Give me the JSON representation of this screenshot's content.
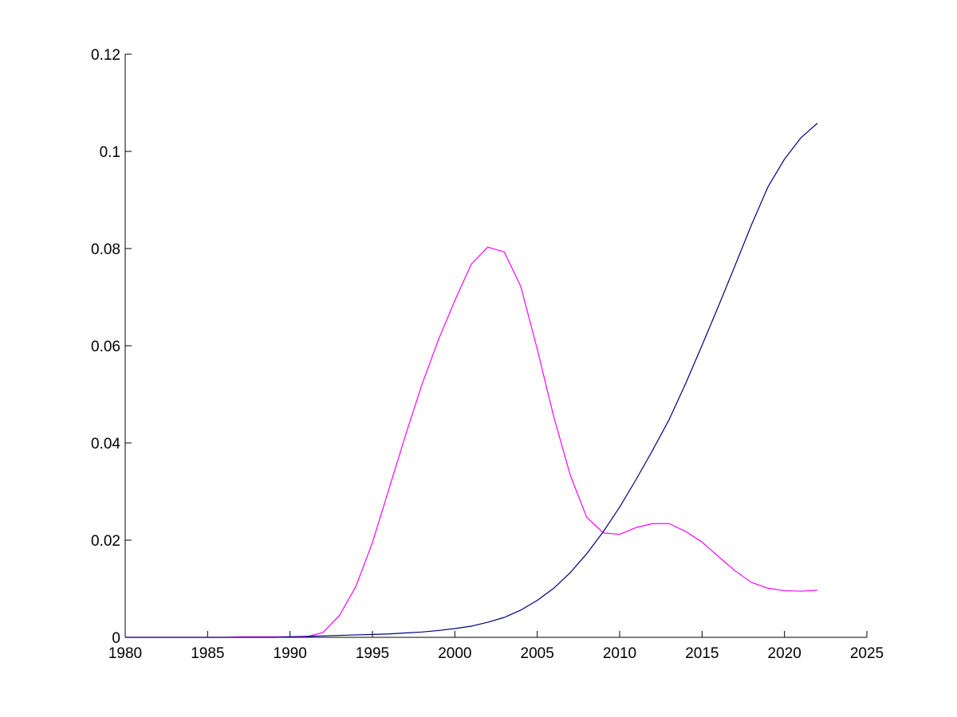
{
  "chart_data": {
    "type": "line",
    "title": "",
    "xlabel": "",
    "ylabel": "",
    "xlim": [
      1980,
      2025
    ],
    "ylim": [
      0,
      0.12
    ],
    "x_ticks": [
      1980,
      1985,
      1990,
      1995,
      2000,
      2005,
      2010,
      2015,
      2020,
      2025
    ],
    "y_ticks": [
      0,
      0.02,
      0.04,
      0.06,
      0.08,
      0.1,
      0.12
    ],
    "x_tick_labels": [
      "1980",
      "1985",
      "1990",
      "1995",
      "2000",
      "2005",
      "2010",
      "2015",
      "2020",
      "2025"
    ],
    "y_tick_labels": [
      "0",
      "0.02",
      "0.04",
      "0.06",
      "0.08",
      "0.1",
      "0.12"
    ],
    "grid": false,
    "legend": "none",
    "series": [
      {
        "color": "#ff00ff",
        "x": [
          1980,
          1981,
          1982,
          1983,
          1984,
          1985,
          1986,
          1987,
          1988,
          1989,
          1990,
          1991,
          1992,
          1993,
          1994,
          1995,
          1996,
          1997,
          1998,
          1999,
          2000,
          2001,
          2002,
          2003,
          2004,
          2005,
          2006,
          2007,
          2008,
          2009,
          2010,
          2011,
          2012,
          2013,
          2014,
          2015,
          2016,
          2017,
          2018,
          2019,
          2020,
          2021,
          2022
        ],
        "values": [
          0,
          0,
          0,
          0,
          0,
          0,
          0,
          0.0001,
          0.0001,
          0.0001,
          0.0001,
          0.0001,
          0.001,
          0.0045,
          0.0105,
          0.0195,
          0.0305,
          0.0415,
          0.052,
          0.0612,
          0.0693,
          0.0768,
          0.0803,
          0.0793,
          0.0722,
          0.0593,
          0.0454,
          0.0334,
          0.0247,
          0.0215,
          0.0212,
          0.0226,
          0.0234,
          0.0234,
          0.0218,
          0.0196,
          0.0166,
          0.0137,
          0.0113,
          0.0101,
          0.0096,
          0.0095,
          0.0097
        ]
      },
      {
        "color": "#00007f",
        "x": [
          1980,
          1981,
          1982,
          1983,
          1984,
          1985,
          1986,
          1987,
          1988,
          1989,
          1990,
          1991,
          1992,
          1993,
          1994,
          1995,
          1996,
          1997,
          1998,
          1999,
          2000,
          2001,
          2002,
          2003,
          2004,
          2005,
          2006,
          2007,
          2008,
          2009,
          2010,
          2011,
          2012,
          2013,
          2014,
          2015,
          2016,
          2017,
          2018,
          2019,
          2020,
          2021,
          2022
        ],
        "values": [
          0,
          0,
          0,
          0,
          0,
          0,
          0,
          0,
          0,
          0,
          0.0001,
          0.0002,
          0.0003,
          0.0004,
          0.0005,
          0.0006,
          0.0007,
          0.0009,
          0.0011,
          0.0014,
          0.0018,
          0.0023,
          0.0031,
          0.0041,
          0.0056,
          0.0076,
          0.0101,
          0.0133,
          0.0172,
          0.0217,
          0.0268,
          0.0325,
          0.0385,
          0.0448,
          0.0522,
          0.0601,
          0.0682,
          0.0765,
          0.0849,
          0.0927,
          0.0984,
          0.1028,
          0.1058
        ]
      }
    ]
  }
}
